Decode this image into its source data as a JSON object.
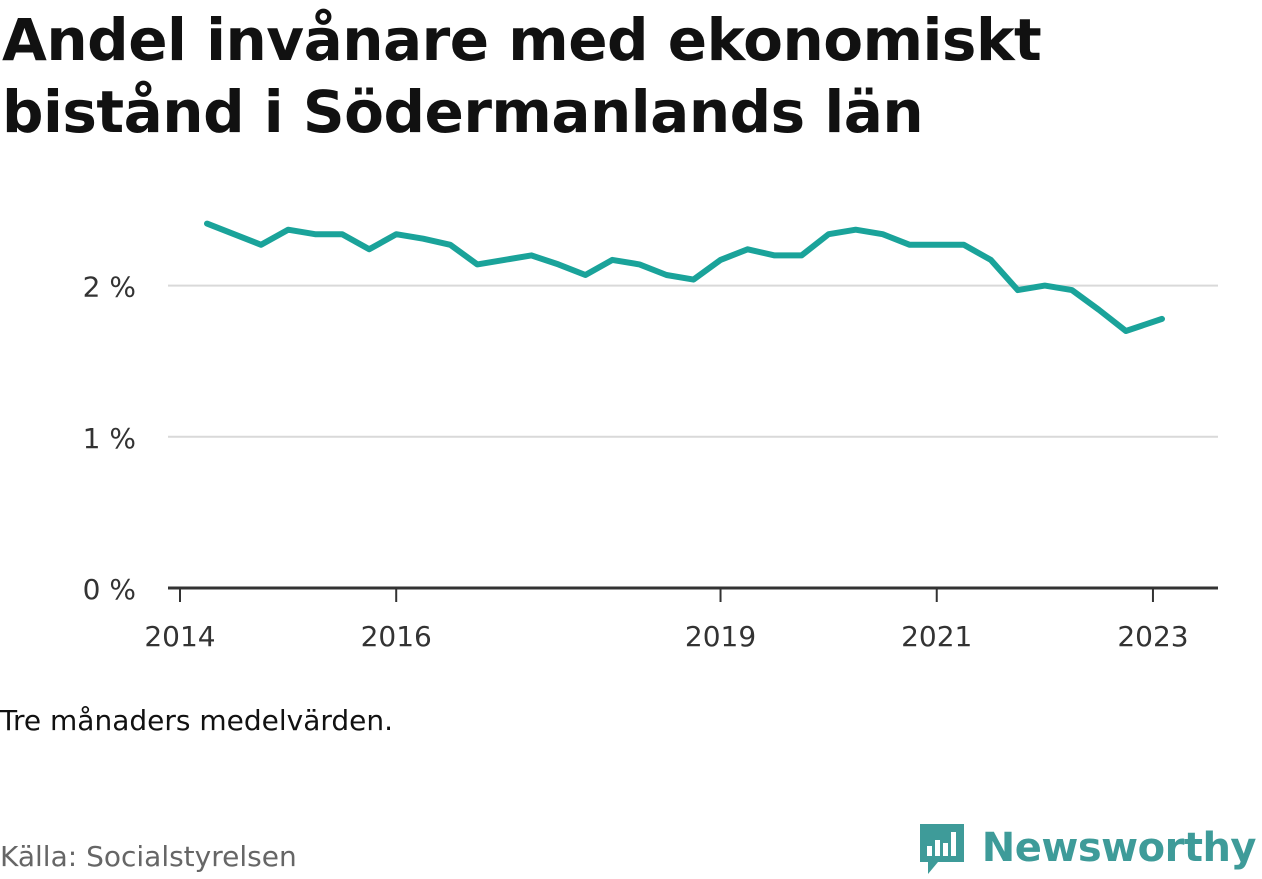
{
  "title": "Andel invånare med ekonomiskt bistånd i Södermanlands län",
  "note": "Tre månaders medelvärden.",
  "source": "Källa: Socialstyrelsen",
  "brand": {
    "name": "Newsworthy",
    "icon": "bar-chart-speech-icon",
    "color": "#3e9b99"
  },
  "chart_data": {
    "type": "line",
    "line_color": "#1aa39a",
    "grid": true,
    "ylim": [
      0,
      2.5
    ],
    "y_ticks": [
      0,
      1,
      2
    ],
    "y_tick_labels": [
      "0 %",
      "1 %",
      "2 %"
    ],
    "x_range": [
      "2014-01",
      "2023-06"
    ],
    "x_ticks": [
      "2014-01",
      "2016-01",
      "2019-01",
      "2021-01",
      "2023-01"
    ],
    "x_tick_labels": [
      "2014",
      "2016",
      "2019",
      "2021",
      "2023"
    ],
    "series": [
      {
        "values": [
          {
            "x": "2014-04",
            "y": 2.41
          },
          {
            "x": "2014-07",
            "y": 2.34
          },
          {
            "x": "2014-10",
            "y": 2.27
          },
          {
            "x": "2015-01",
            "y": 2.37
          },
          {
            "x": "2015-04",
            "y": 2.34
          },
          {
            "x": "2015-07",
            "y": 2.34
          },
          {
            "x": "2015-10",
            "y": 2.24
          },
          {
            "x": "2016-01",
            "y": 2.34
          },
          {
            "x": "2016-04",
            "y": 2.31
          },
          {
            "x": "2016-07",
            "y": 2.27
          },
          {
            "x": "2016-10",
            "y": 2.14
          },
          {
            "x": "2017-01",
            "y": 2.17
          },
          {
            "x": "2017-04",
            "y": 2.2
          },
          {
            "x": "2017-07",
            "y": 2.14
          },
          {
            "x": "2017-10",
            "y": 2.07
          },
          {
            "x": "2018-01",
            "y": 2.17
          },
          {
            "x": "2018-04",
            "y": 2.14
          },
          {
            "x": "2018-07",
            "y": 2.07
          },
          {
            "x": "2018-10",
            "y": 2.04
          },
          {
            "x": "2019-01",
            "y": 2.17
          },
          {
            "x": "2019-04",
            "y": 2.24
          },
          {
            "x": "2019-07",
            "y": 2.2
          },
          {
            "x": "2019-10",
            "y": 2.2
          },
          {
            "x": "2020-01",
            "y": 2.34
          },
          {
            "x": "2020-04",
            "y": 2.37
          },
          {
            "x": "2020-07",
            "y": 2.34
          },
          {
            "x": "2020-10",
            "y": 2.27
          },
          {
            "x": "2021-01",
            "y": 2.27
          },
          {
            "x": "2021-04",
            "y": 2.27
          },
          {
            "x": "2021-07",
            "y": 2.17
          },
          {
            "x": "2021-10",
            "y": 1.97
          },
          {
            "x": "2022-01",
            "y": 2.0
          },
          {
            "x": "2022-04",
            "y": 1.97
          },
          {
            "x": "2022-07",
            "y": 1.84
          },
          {
            "x": "2022-10",
            "y": 1.7
          },
          {
            "x": "2023-02",
            "y": 1.78
          }
        ]
      }
    ]
  }
}
